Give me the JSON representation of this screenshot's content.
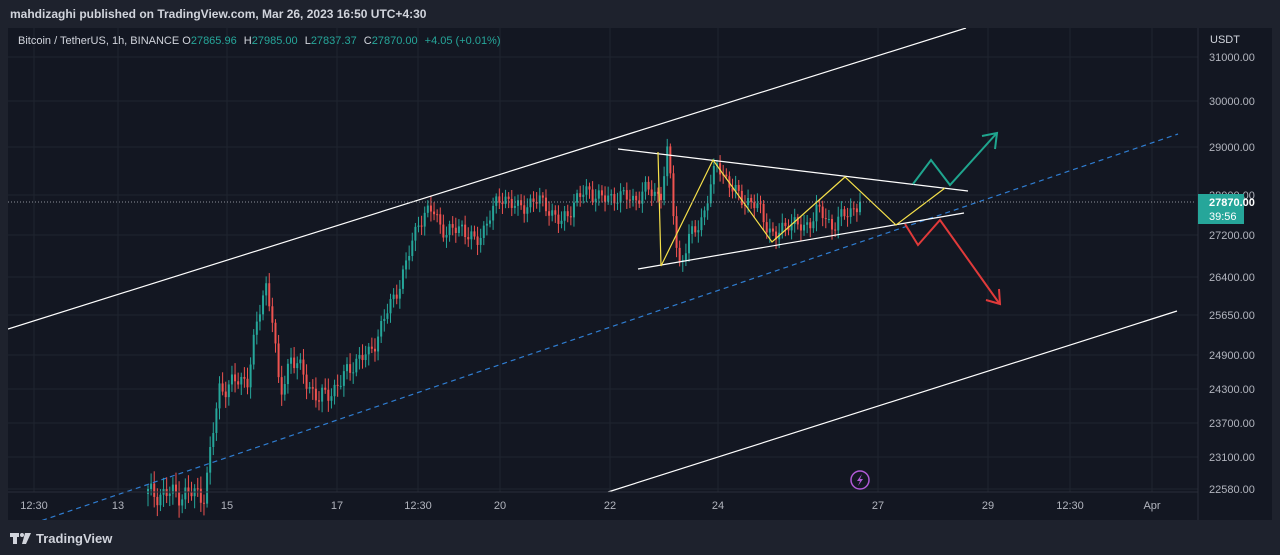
{
  "header": {
    "publisher": "mahdizaghi published on TradingView.com, Mar 26, 2023 16:50 UTC+4:30"
  },
  "legend": {
    "symbol": "Bitcoin / TetherUS, 1h, BINANCE",
    "o_label": "O",
    "o_value": "27865.96",
    "h_label": "H",
    "h_value": "27985.00",
    "l_label": "L",
    "l_value": "27837.37",
    "c_label": "C",
    "c_value": "27870.00",
    "change": "+4.05 (+0.01%)"
  },
  "price_axis": {
    "currency": "USDT",
    "current_price": "27870.00",
    "countdown": "39:56"
  },
  "footer": {
    "brand": "TradingView"
  },
  "colors": {
    "up": "#26a69a",
    "down": "#ef5350",
    "yellow": "#f5e04a",
    "channel": "#ffffff",
    "midline": "#2f7dd1",
    "green_arrow": "#1fa58e",
    "red_arrow": "#e03a3a",
    "icon": "#b05ad6"
  },
  "icons": {
    "flash": "lightning-icon",
    "logo": "tradingview-logo-icon"
  },
  "chart_data": {
    "type": "candlestick",
    "title": "Bitcoin / TetherUS, 1h, BINANCE",
    "x_axis_ticks": [
      "12:30",
      "13",
      "15",
      "17",
      "12:30",
      "20",
      "22",
      "24",
      "27",
      "29",
      "12:30",
      "Apr"
    ],
    "y_axis_ticks": [
      31000,
      30000,
      29000,
      28000,
      27200,
      26400,
      25650,
      24900,
      24300,
      23700,
      23100,
      22580
    ],
    "y_axis_tick_labels": [
      "31000.00",
      "30000.00",
      "29000.00",
      "28000.00",
      "27200.00",
      "26400.00",
      "25650.00",
      "24900.00",
      "24300.00",
      "23700.00",
      "23100.00",
      "22580.00"
    ],
    "last_price": 27870.0,
    "series_path": [
      [
        0,
        22500
      ],
      [
        0.05,
        22500
      ],
      [
        0.08,
        22500
      ],
      [
        0.1,
        24300
      ],
      [
        0.14,
        24500
      ],
      [
        0.165,
        26300
      ],
      [
        0.175,
        25600
      ],
      [
        0.185,
        24100
      ],
      [
        0.2,
        24900
      ],
      [
        0.215,
        24600
      ],
      [
        0.24,
        24100
      ],
      [
        0.27,
        24400
      ],
      [
        0.29,
        24800
      ],
      [
        0.31,
        24900
      ],
      [
        0.33,
        25500
      ],
      [
        0.36,
        26500
      ],
      [
        0.38,
        27500
      ],
      [
        0.4,
        27700
      ],
      [
        0.42,
        27200
      ],
      [
        0.44,
        27400
      ],
      [
        0.46,
        27000
      ],
      [
        0.48,
        27600
      ],
      [
        0.5,
        28000
      ],
      [
        0.52,
        27700
      ],
      [
        0.54,
        27900
      ],
      [
        0.56,
        27800
      ],
      [
        0.58,
        27400
      ],
      [
        0.6,
        27900
      ],
      [
        0.62,
        28100
      ],
      [
        0.64,
        27900
      ],
      [
        0.66,
        28000
      ],
      [
        0.68,
        27900
      ],
      [
        0.7,
        28100
      ],
      [
        0.72,
        28000
      ],
      [
        0.73,
        28900
      ],
      [
        0.745,
        26600
      ],
      [
        0.76,
        27100
      ],
      [
        0.78,
        27600
      ],
      [
        0.8,
        28700
      ],
      [
        0.82,
        28100
      ],
      [
        0.84,
        27900
      ],
      [
        0.86,
        27700
      ],
      [
        0.88,
        27100
      ],
      [
        0.9,
        27500
      ],
      [
        0.92,
        27300
      ],
      [
        0.94,
        27700
      ],
      [
        0.96,
        27400
      ],
      [
        0.98,
        27600
      ],
      [
        1.0,
        27870
      ]
    ]
  }
}
